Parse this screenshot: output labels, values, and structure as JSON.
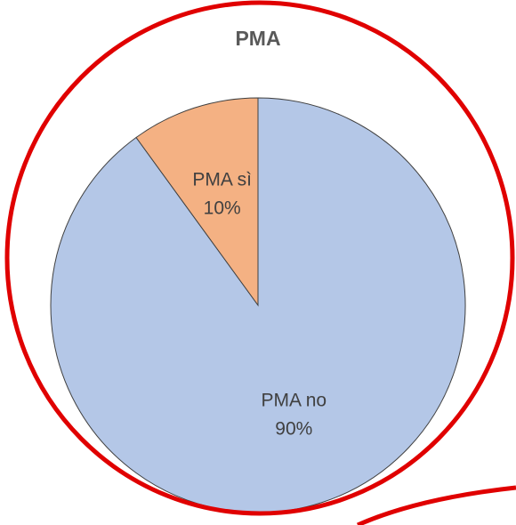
{
  "chart_data": {
    "type": "pie",
    "title": "PMA",
    "categories": [
      "PMA no",
      "PMA sì"
    ],
    "values": [
      90,
      10
    ],
    "value_labels": [
      "90%",
      "10%"
    ],
    "colors": [
      "#b4c7e7",
      "#f4b183"
    ]
  }
}
